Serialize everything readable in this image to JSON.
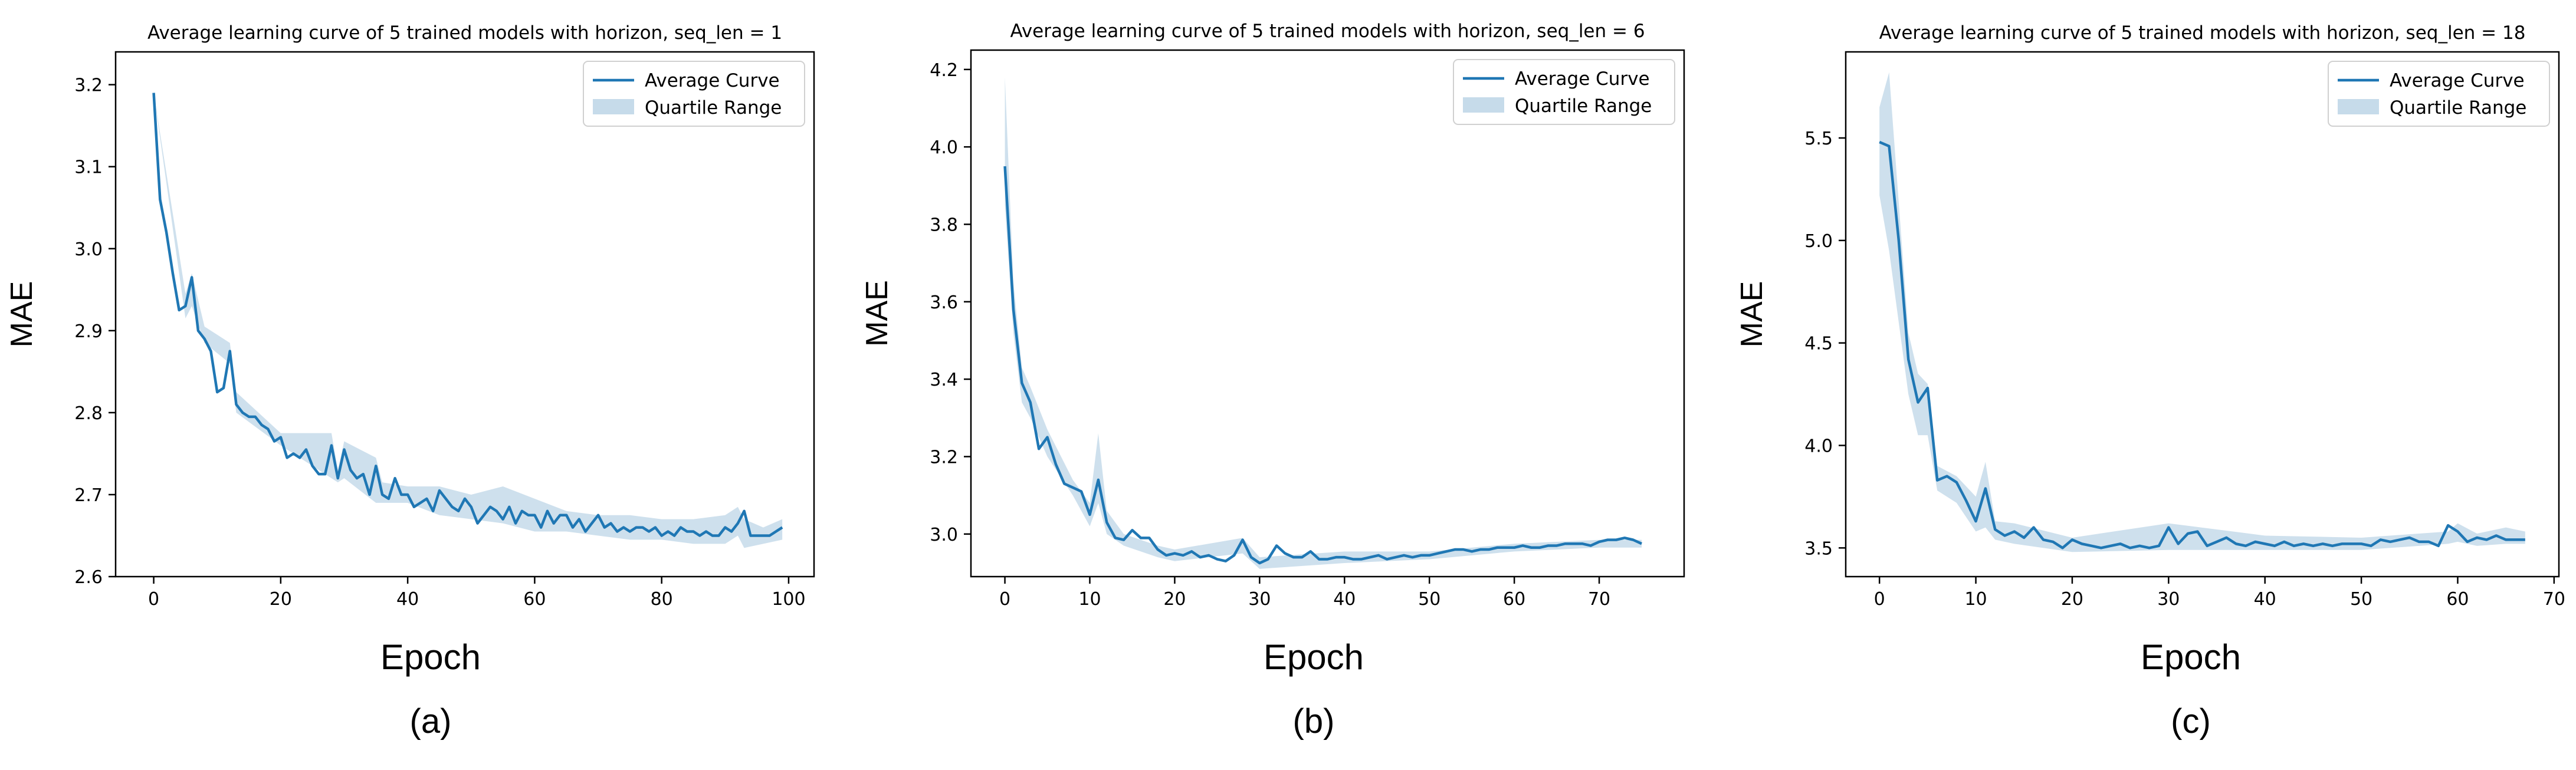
{
  "figure": {
    "panel_labels": [
      "(a)",
      "(b)",
      "(c)"
    ]
  },
  "colors": {
    "line": "#1f77b4",
    "band": "#c6dbea",
    "axis": "#000000"
  },
  "chart_data": [
    {
      "type": "line",
      "title": "Average learning curve of 5 trained models with horizon, seq_len = 1",
      "xlabel": "Epoch",
      "ylabel": "MAE",
      "xlim": [
        -6,
        104
      ],
      "ylim": [
        2.6,
        3.24
      ],
      "xticks": [
        0,
        20,
        40,
        60,
        80,
        100
      ],
      "yticks": [
        2.6,
        2.7,
        2.8,
        2.9,
        3.0,
        3.1,
        3.2
      ],
      "ytick_labels": [
        "2.6",
        "2.7",
        "2.8",
        "2.9",
        "3.0",
        "3.1",
        "3.2"
      ],
      "legend": {
        "placement": "top-right",
        "entries": [
          "Average Curve",
          "Quartile Range"
        ]
      },
      "grid": false,
      "series": [
        {
          "name": "Average Curve",
          "x": [
            0,
            1,
            2,
            3,
            4,
            5,
            6,
            7,
            8,
            9,
            10,
            11,
            12,
            13,
            14,
            15,
            16,
            17,
            18,
            19,
            20,
            21,
            22,
            23,
            24,
            25,
            26,
            27,
            28,
            29,
            30,
            31,
            32,
            33,
            34,
            35,
            36,
            37,
            38,
            39,
            40,
            41,
            42,
            43,
            44,
            45,
            46,
            47,
            48,
            49,
            50,
            51,
            52,
            53,
            54,
            55,
            56,
            57,
            58,
            59,
            60,
            61,
            62,
            63,
            64,
            65,
            66,
            67,
            68,
            69,
            70,
            71,
            72,
            73,
            74,
            75,
            76,
            77,
            78,
            79,
            80,
            81,
            82,
            83,
            84,
            85,
            86,
            87,
            88,
            89,
            90,
            91,
            92,
            93,
            94,
            95,
            96,
            97,
            98,
            99
          ],
          "y": [
            3.19,
            3.06,
            3.02,
            2.97,
            2.925,
            2.93,
            2.965,
            2.9,
            2.89,
            2.875,
            2.825,
            2.83,
            2.875,
            2.81,
            2.8,
            2.795,
            2.795,
            2.785,
            2.78,
            2.765,
            2.77,
            2.745,
            2.75,
            2.745,
            2.755,
            2.735,
            2.725,
            2.725,
            2.76,
            2.72,
            2.755,
            2.73,
            2.72,
            2.725,
            2.7,
            2.735,
            2.7,
            2.695,
            2.72,
            2.7,
            2.7,
            2.685,
            2.69,
            2.695,
            2.68,
            2.705,
            2.695,
            2.685,
            2.68,
            2.695,
            2.685,
            2.665,
            2.675,
            2.685,
            2.68,
            2.67,
            2.685,
            2.665,
            2.68,
            2.675,
            2.675,
            2.66,
            2.68,
            2.665,
            2.675,
            2.675,
            2.66,
            2.67,
            2.655,
            2.665,
            2.675,
            2.66,
            2.665,
            2.655,
            2.66,
            2.655,
            2.66,
            2.66,
            2.655,
            2.66,
            2.65,
            2.655,
            2.65,
            2.66,
            2.655,
            2.655,
            2.65,
            2.655,
            2.65,
            2.65,
            2.66,
            2.655,
            2.665,
            2.68,
            2.65,
            2.65,
            2.65,
            2.65,
            2.655,
            2.66
          ]
        },
        {
          "name": "Quartile Range",
          "x": [
            0,
            5,
            6,
            8,
            12,
            13,
            20,
            28,
            29,
            30,
            35,
            36,
            40,
            45,
            50,
            55,
            60,
            65,
            70,
            75,
            80,
            85,
            90,
            92,
            93,
            96,
            99
          ],
          "lower": [
            3.19,
            2.915,
            2.93,
            2.885,
            2.86,
            2.8,
            2.76,
            2.72,
            2.715,
            2.72,
            2.69,
            2.69,
            2.69,
            2.675,
            2.67,
            2.665,
            2.655,
            2.655,
            2.65,
            2.645,
            2.645,
            2.64,
            2.64,
            2.65,
            2.635,
            2.64,
            2.645
          ],
          "upper": [
            3.19,
            2.945,
            2.97,
            2.905,
            2.885,
            2.825,
            2.775,
            2.775,
            2.73,
            2.765,
            2.745,
            2.715,
            2.71,
            2.71,
            2.7,
            2.71,
            2.695,
            2.68,
            2.675,
            2.675,
            2.67,
            2.67,
            2.675,
            2.685,
            2.67,
            2.66,
            2.67
          ]
        }
      ]
    },
    {
      "type": "line",
      "title": "Average learning curve of 5 trained models with horizon, seq_len = 6",
      "xlabel": "Epoch",
      "ylabel": "MAE",
      "xlim": [
        -4,
        80
      ],
      "ylim": [
        2.89,
        4.25
      ],
      "xticks": [
        0,
        10,
        20,
        30,
        40,
        50,
        60,
        70
      ],
      "yticks": [
        3.0,
        3.2,
        3.4,
        3.6,
        3.8,
        4.0,
        4.2
      ],
      "ytick_labels": [
        "3.0",
        "3.2",
        "3.4",
        "3.6",
        "3.8",
        "4.0",
        "4.2"
      ],
      "legend": {
        "placement": "top-right",
        "entries": [
          "Average Curve",
          "Quartile Range"
        ]
      },
      "grid": false,
      "series": [
        {
          "name": "Average Curve",
          "x": [
            0,
            1,
            2,
            3,
            4,
            5,
            6,
            7,
            8,
            9,
            10,
            11,
            12,
            13,
            14,
            15,
            16,
            17,
            18,
            19,
            20,
            21,
            22,
            23,
            24,
            25,
            26,
            27,
            28,
            29,
            30,
            31,
            32,
            33,
            34,
            35,
            36,
            37,
            38,
            39,
            40,
            41,
            42,
            43,
            44,
            45,
            46,
            47,
            48,
            49,
            50,
            51,
            52,
            53,
            54,
            55,
            56,
            57,
            58,
            59,
            60,
            61,
            62,
            63,
            64,
            65,
            66,
            67,
            68,
            69,
            70,
            71,
            72,
            73,
            74,
            75
          ],
          "y": [
            3.95,
            3.58,
            3.39,
            3.34,
            3.22,
            3.25,
            3.18,
            3.13,
            3.12,
            3.11,
            3.05,
            3.14,
            3.03,
            2.99,
            2.985,
            3.01,
            2.99,
            2.99,
            2.96,
            2.945,
            2.95,
            2.945,
            2.955,
            2.94,
            2.945,
            2.935,
            2.93,
            2.945,
            2.985,
            2.94,
            2.925,
            2.935,
            2.97,
            2.95,
            2.94,
            2.94,
            2.955,
            2.935,
            2.935,
            2.94,
            2.94,
            2.935,
            2.935,
            2.94,
            2.945,
            2.935,
            2.94,
            2.945,
            2.94,
            2.945,
            2.945,
            2.95,
            2.955,
            2.96,
            2.96,
            2.955,
            2.96,
            2.96,
            2.965,
            2.965,
            2.965,
            2.97,
            2.965,
            2.965,
            2.97,
            2.97,
            2.975,
            2.975,
            2.975,
            2.97,
            2.98,
            2.985,
            2.985,
            2.99,
            2.985,
            2.975
          ]
        },
        {
          "name": "Quartile Range",
          "x": [
            0,
            1,
            2,
            3,
            5,
            8,
            10,
            11,
            12,
            14,
            18,
            20,
            28,
            30,
            40,
            50,
            60,
            70,
            75
          ],
          "lower": [
            3.85,
            3.52,
            3.34,
            3.3,
            3.2,
            3.1,
            3.02,
            3.08,
            3.0,
            2.97,
            2.94,
            2.93,
            2.95,
            2.91,
            2.925,
            2.935,
            2.955,
            2.965,
            2.965
          ],
          "upper": [
            4.18,
            3.65,
            3.43,
            3.38,
            3.27,
            3.14,
            3.08,
            3.26,
            3.06,
            3.0,
            2.97,
            2.96,
            2.99,
            2.94,
            2.955,
            2.955,
            2.975,
            2.985,
            2.985
          ]
        }
      ]
    },
    {
      "type": "line",
      "title": "Average learning curve of 5 trained models with horizon, seq_len = 18",
      "xlabel": "Epoch",
      "ylabel": "MAE",
      "xlim": [
        -3.5,
        70.5
      ],
      "ylim": [
        3.36,
        5.92
      ],
      "xticks": [
        0,
        10,
        20,
        30,
        40,
        50,
        60,
        70
      ],
      "yticks": [
        3.5,
        4.0,
        4.5,
        5.0,
        5.5
      ],
      "ytick_labels": [
        "3.5",
        "4.0",
        "4.5",
        "5.0",
        "5.5"
      ],
      "legend": {
        "placement": "top-right",
        "entries": [
          "Average Curve",
          "Quartile Range"
        ]
      },
      "grid": false,
      "series": [
        {
          "name": "Average Curve",
          "x": [
            0,
            1,
            2,
            3,
            4,
            5,
            6,
            7,
            8,
            9,
            10,
            11,
            12,
            13,
            14,
            15,
            16,
            17,
            18,
            19,
            20,
            21,
            22,
            23,
            24,
            25,
            26,
            27,
            28,
            29,
            30,
            31,
            32,
            33,
            34,
            35,
            36,
            37,
            38,
            39,
            40,
            41,
            42,
            43,
            44,
            45,
            46,
            47,
            48,
            49,
            50,
            51,
            52,
            53,
            54,
            55,
            56,
            57,
            58,
            59,
            60,
            61,
            62,
            63,
            64,
            65,
            66,
            67
          ],
          "y": [
            5.48,
            5.46,
            5.0,
            4.42,
            4.21,
            4.28,
            3.83,
            3.85,
            3.82,
            3.73,
            3.63,
            3.79,
            3.59,
            3.56,
            3.58,
            3.55,
            3.6,
            3.54,
            3.53,
            3.5,
            3.54,
            3.52,
            3.51,
            3.5,
            3.51,
            3.52,
            3.5,
            3.51,
            3.5,
            3.51,
            3.6,
            3.52,
            3.57,
            3.58,
            3.51,
            3.53,
            3.55,
            3.52,
            3.51,
            3.53,
            3.52,
            3.51,
            3.53,
            3.51,
            3.52,
            3.51,
            3.52,
            3.51,
            3.52,
            3.52,
            3.52,
            3.51,
            3.54,
            3.53,
            3.54,
            3.55,
            3.53,
            3.53,
            3.51,
            3.61,
            3.58,
            3.53,
            3.55,
            3.54,
            3.56,
            3.54,
            3.54,
            3.54
          ]
        },
        {
          "name": "Quartile Range",
          "x": [
            0,
            1,
            3,
            4,
            5,
            6,
            8,
            10,
            11,
            12,
            14,
            20,
            30,
            40,
            50,
            59,
            60,
            62,
            65,
            67
          ],
          "lower": [
            5.22,
            4.95,
            4.25,
            4.05,
            4.05,
            3.78,
            3.72,
            3.58,
            3.6,
            3.54,
            3.52,
            3.48,
            3.49,
            3.49,
            3.49,
            3.52,
            3.53,
            3.51,
            3.52,
            3.52
          ],
          "upper": [
            5.65,
            5.82,
            4.55,
            4.35,
            4.3,
            3.9,
            3.85,
            3.75,
            3.92,
            3.63,
            3.62,
            3.55,
            3.62,
            3.56,
            3.55,
            3.58,
            3.62,
            3.57,
            3.6,
            3.58
          ]
        }
      ]
    }
  ]
}
